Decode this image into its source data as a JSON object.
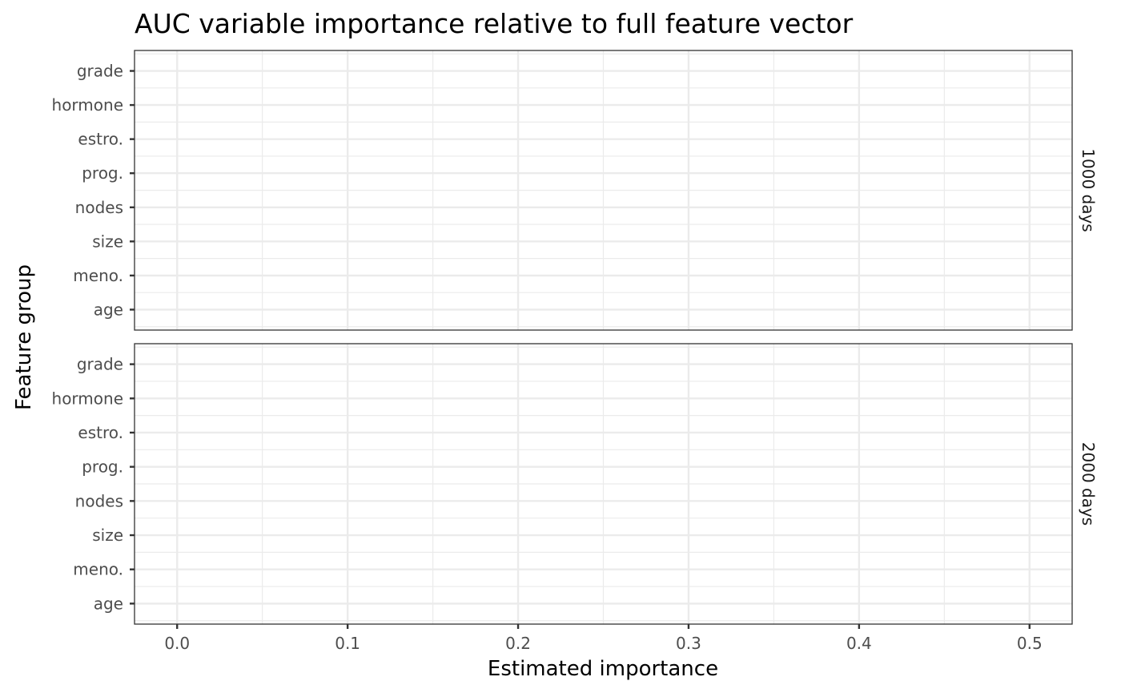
{
  "chart_data": {
    "type": "scatter",
    "title": "AUC variable importance relative to full feature vector",
    "xlabel": "Estimated importance",
    "ylabel": "Feature group",
    "xlim": [
      -0.025,
      0.525
    ],
    "x_ticks": [
      0.0,
      0.1,
      0.2,
      0.3,
      0.4,
      0.5
    ],
    "x_tick_labels": [
      "0.0",
      "0.1",
      "0.2",
      "0.3",
      "0.4",
      "0.5"
    ],
    "categories": [
      "age",
      "meno.",
      "size",
      "nodes",
      "prog.",
      "estro.",
      "hormone",
      "grade"
    ],
    "grid": true,
    "panels": [
      {
        "strip_label": "1000 days",
        "points": []
      },
      {
        "strip_label": "2000 days",
        "points": []
      }
    ]
  }
}
